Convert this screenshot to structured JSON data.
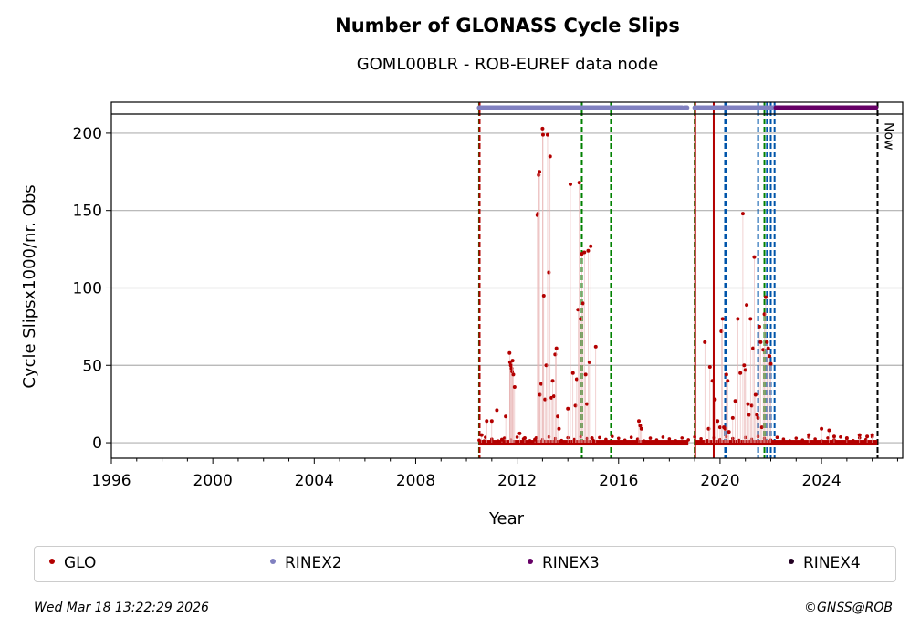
{
  "chart_data": {
    "type": "scatter",
    "title": "Number of GLONASS Cycle Slips",
    "subtitle": "GOML00BLR - ROB-EUREF data node",
    "xlabel": "Year",
    "ylabel": "Cycle Slipsx1000/nr. Obs",
    "xlim": [
      1996,
      2027.2
    ],
    "ylim": [
      -10,
      220
    ],
    "xticks": [
      1996,
      2000,
      2004,
      2008,
      2012,
      2016,
      2020,
      2024
    ],
    "yticks": [
      0,
      50,
      100,
      150,
      200
    ],
    "grid": "horizontal",
    "now_label": "Now",
    "now_year": 2026.21,
    "legend_position": "bottom",
    "series": [
      {
        "name": "GLO",
        "color": "#b30000",
        "baseline_ranges": [
          [
            2010.5,
            2018.75
          ],
          [
            2019.0,
            2026.2
          ]
        ],
        "points": [
          [
            2010.6,
            5
          ],
          [
            2010.7,
            1
          ],
          [
            2010.8,
            14
          ],
          [
            2011.0,
            14
          ],
          [
            2011.2,
            21
          ],
          [
            2011.4,
            2
          ],
          [
            2011.55,
            17
          ],
          [
            2011.7,
            58
          ],
          [
            2011.72,
            52
          ],
          [
            2011.75,
            50
          ],
          [
            2011.78,
            48
          ],
          [
            2011.8,
            46
          ],
          [
            2011.82,
            53
          ],
          [
            2011.85,
            44
          ],
          [
            2011.9,
            36
          ],
          [
            2012.1,
            6
          ],
          [
            2012.3,
            3
          ],
          [
            2012.7,
            2
          ],
          [
            2012.8,
            147
          ],
          [
            2012.82,
            148
          ],
          [
            2012.85,
            173
          ],
          [
            2012.88,
            175
          ],
          [
            2012.9,
            31
          ],
          [
            2012.95,
            38
          ],
          [
            2013.0,
            203
          ],
          [
            2013.02,
            199
          ],
          [
            2013.05,
            95
          ],
          [
            2013.1,
            28
          ],
          [
            2013.15,
            50
          ],
          [
            2013.2,
            199
          ],
          [
            2013.25,
            110
          ],
          [
            2013.3,
            185
          ],
          [
            2013.35,
            29
          ],
          [
            2013.4,
            40
          ],
          [
            2013.45,
            30
          ],
          [
            2013.5,
            57
          ],
          [
            2013.55,
            61
          ],
          [
            2013.6,
            17
          ],
          [
            2013.65,
            9
          ],
          [
            2014.0,
            22
          ],
          [
            2014.1,
            167
          ],
          [
            2014.2,
            45
          ],
          [
            2014.3,
            24
          ],
          [
            2014.35,
            41
          ],
          [
            2014.4,
            86
          ],
          [
            2014.45,
            168
          ],
          [
            2014.5,
            80
          ],
          [
            2014.55,
            122
          ],
          [
            2014.6,
            90
          ],
          [
            2014.65,
            123
          ],
          [
            2014.7,
            44
          ],
          [
            2014.75,
            25
          ],
          [
            2014.8,
            124
          ],
          [
            2014.85,
            52
          ],
          [
            2014.9,
            127
          ],
          [
            2014.95,
            3
          ],
          [
            2015.1,
            62
          ],
          [
            2016.8,
            14
          ],
          [
            2016.85,
            11
          ],
          [
            2016.9,
            9
          ],
          [
            2019.4,
            65
          ],
          [
            2019.55,
            9
          ],
          [
            2019.6,
            49
          ],
          [
            2019.7,
            40
          ],
          [
            2019.8,
            28
          ],
          [
            2019.9,
            14
          ],
          [
            2020.0,
            10
          ],
          [
            2020.05,
            72
          ],
          [
            2020.1,
            80
          ],
          [
            2020.15,
            10
          ],
          [
            2020.2,
            9
          ],
          [
            2020.25,
            44
          ],
          [
            2020.3,
            40
          ],
          [
            2020.35,
            7
          ],
          [
            2020.5,
            16
          ],
          [
            2020.6,
            27
          ],
          [
            2020.7,
            80
          ],
          [
            2020.8,
            45
          ],
          [
            2020.9,
            148
          ],
          [
            2020.95,
            50
          ],
          [
            2021.0,
            47
          ],
          [
            2021.05,
            89
          ],
          [
            2021.1,
            25
          ],
          [
            2021.15,
            18
          ],
          [
            2021.2,
            80
          ],
          [
            2021.25,
            24
          ],
          [
            2021.3,
            61
          ],
          [
            2021.35,
            120
          ],
          [
            2021.4,
            31
          ],
          [
            2021.45,
            18
          ],
          [
            2021.5,
            16
          ],
          [
            2021.55,
            75
          ],
          [
            2021.6,
            65
          ],
          [
            2021.65,
            10
          ],
          [
            2021.7,
            60
          ],
          [
            2021.75,
            83
          ],
          [
            2021.8,
            94
          ],
          [
            2021.85,
            65
          ],
          [
            2021.9,
            61
          ],
          [
            2021.95,
            56
          ],
          [
            2022.0,
            51
          ],
          [
            2023.5,
            5
          ],
          [
            2024.0,
            9
          ],
          [
            2024.3,
            8
          ],
          [
            2024.5,
            4
          ],
          [
            2025.0,
            3
          ],
          [
            2025.5,
            5
          ],
          [
            2025.8,
            4
          ],
          [
            2026.0,
            5
          ]
        ]
      },
      {
        "name": "RINEX2",
        "color": "#8080c0",
        "ranges": [
          [
            2010.5,
            2018.5
          ],
          [
            2018.6,
            2018.7
          ],
          [
            2019.0,
            2022.2
          ]
        ]
      },
      {
        "name": "RINEX3",
        "color": "#660066",
        "ranges": [
          [
            2022.2,
            2026.15
          ]
        ]
      },
      {
        "name": "RINEX4",
        "color": "#220022",
        "ranges": []
      }
    ],
    "vlines": [
      {
        "x": 2010.5,
        "color": "#008000",
        "style": "dashed"
      },
      {
        "x": 2010.52,
        "color": "#b30000",
        "style": "dashed"
      },
      {
        "x": 2014.55,
        "color": "#008000",
        "style": "dashed"
      },
      {
        "x": 2015.7,
        "color": "#008000",
        "style": "dashed"
      },
      {
        "x": 2019.0,
        "color": "#008000",
        "style": "dashed"
      },
      {
        "x": 2019.02,
        "color": "#b30000",
        "style": "solid"
      },
      {
        "x": 2019.75,
        "color": "#b30000",
        "style": "solid"
      },
      {
        "x": 2020.2,
        "color": "#0055aa",
        "style": "dashed"
      },
      {
        "x": 2020.25,
        "color": "#0055aa",
        "style": "dashed"
      },
      {
        "x": 2021.5,
        "color": "#0055aa",
        "style": "dashed"
      },
      {
        "x": 2021.75,
        "color": "#008000",
        "style": "dashed"
      },
      {
        "x": 2021.85,
        "color": "#0055aa",
        "style": "dashed"
      },
      {
        "x": 2022.0,
        "color": "#0055aa",
        "style": "dashed"
      },
      {
        "x": 2022.15,
        "color": "#0055aa",
        "style": "dashed"
      },
      {
        "x": 2026.21,
        "color": "#000000",
        "style": "dashed"
      }
    ]
  },
  "legend": {
    "items": [
      {
        "label": "GLO",
        "color": "#b30000"
      },
      {
        "label": "RINEX2",
        "color": "#8080c0"
      },
      {
        "label": "RINEX3",
        "color": "#660066"
      },
      {
        "label": "RINEX4",
        "color": "#220022"
      }
    ]
  },
  "footer": {
    "timestamp": "Wed Mar 18 13:22:29 2026",
    "credit": "©GNSS@ROB"
  }
}
